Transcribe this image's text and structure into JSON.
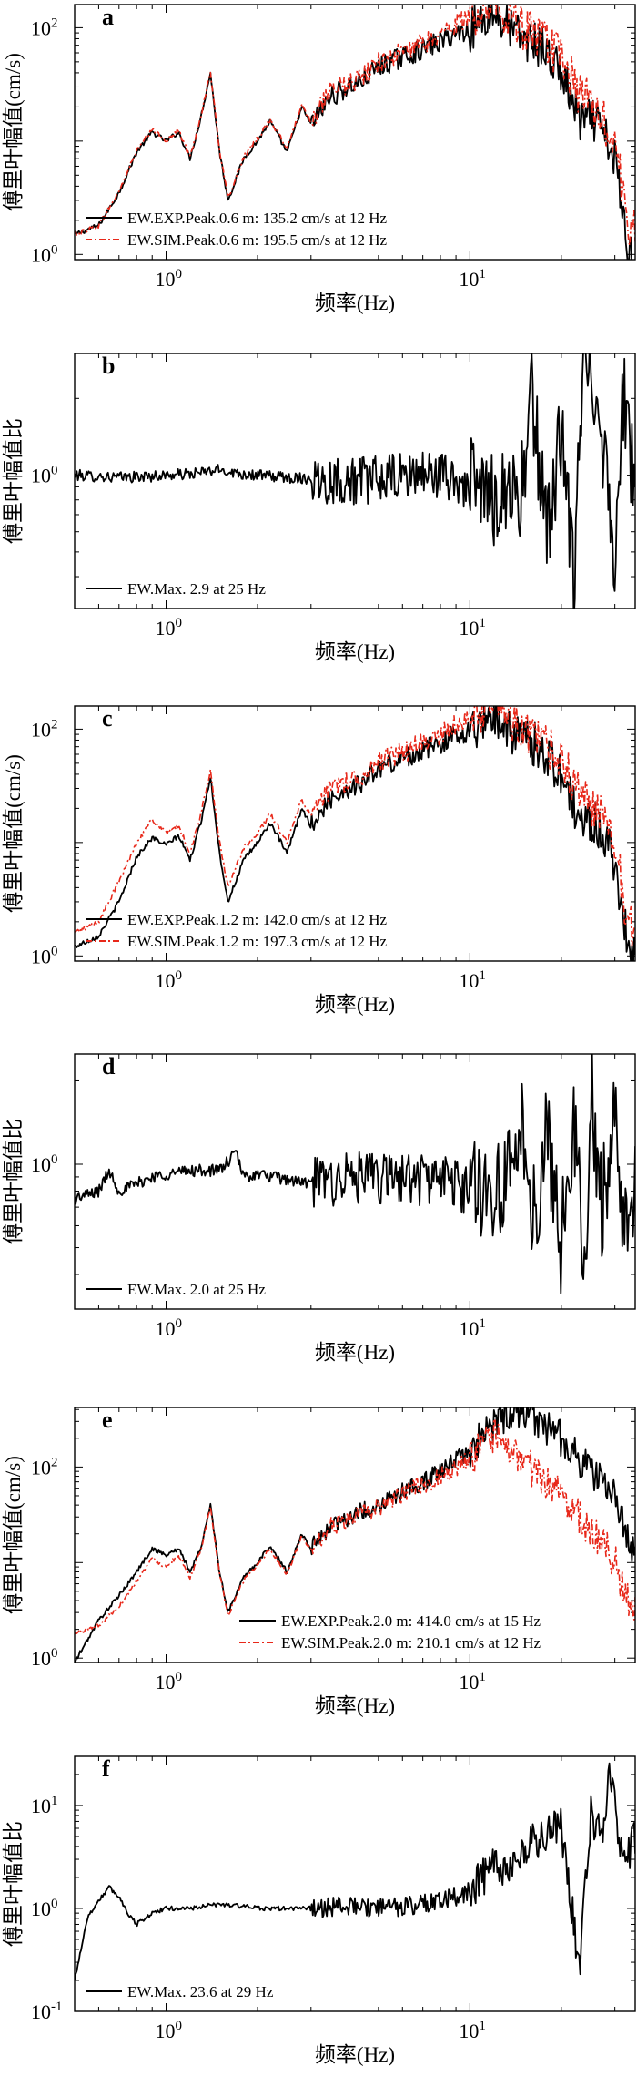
{
  "figure": {
    "x_label": "频率(Hz)"
  },
  "chart_data": [
    {
      "type": "line",
      "panel": "a",
      "xscale": "log",
      "yscale": "log",
      "xlim": [
        0.5,
        35
      ],
      "ylim": [
        0.9,
        160
      ],
      "xlabel": "频率(Hz)",
      "ylabel": "傅里叶幅值(cm/s)",
      "x_ticks": [
        {
          "value": 1,
          "base": "10",
          "exp": "0"
        },
        {
          "value": 10,
          "base": "10",
          "exp": "1"
        }
      ],
      "y_ticks": [
        {
          "value": 1,
          "base": "10",
          "exp": "0"
        },
        {
          "value": 100,
          "base": "10",
          "exp": "2"
        }
      ],
      "legend_position": "bottom-left",
      "series": [
        {
          "name": "EW.EXP.Peak.0.6 m: 135.2 cm/s  at 12 Hz",
          "color": "#000000",
          "dash": "solid",
          "x": [
            0.5,
            0.6,
            0.7,
            0.8,
            0.9,
            1.0,
            1.1,
            1.2,
            1.3,
            1.4,
            1.5,
            1.6,
            1.8,
            2.0,
            2.2,
            2.5,
            2.8,
            3.0,
            3.5,
            4.0,
            4.5,
            5.0,
            6.0,
            7.0,
            8.0,
            9.0,
            10.0,
            11.0,
            12.0,
            13.0,
            14.0,
            15.0,
            17.0,
            20.0,
            23.0,
            26.0,
            30.0,
            33.0,
            35.0
          ],
          "y": [
            1.5,
            1.8,
            3.5,
            8.0,
            12.0,
            10.0,
            12.0,
            7.0,
            16.0,
            40.0,
            8.0,
            3.0,
            7.0,
            10.0,
            15.0,
            8.0,
            20.0,
            14.0,
            25.0,
            30.0,
            35.0,
            45.0,
            55.0,
            65.0,
            75.0,
            90.0,
            95.0,
            120.0,
            135.2,
            110.0,
            90.0,
            80.0,
            70.0,
            40.0,
            15.0,
            15.0,
            7.0,
            1.2,
            0.9
          ]
        },
        {
          "name": "EW.SIM.Peak.0.6 m: 195.5 cm/s  at 12 Hz",
          "color": "#e8281a",
          "dash": "dashdot",
          "x": [
            0.5,
            0.6,
            0.7,
            0.8,
            0.9,
            1.0,
            1.1,
            1.2,
            1.3,
            1.4,
            1.5,
            1.6,
            1.8,
            2.0,
            2.2,
            2.5,
            2.8,
            3.0,
            3.5,
            4.0,
            4.5,
            5.0,
            6.0,
            7.0,
            8.0,
            9.0,
            10.0,
            11.0,
            12.0,
            13.0,
            14.0,
            15.0,
            17.0,
            20.0,
            23.0,
            26.0,
            30.0,
            33.0,
            35.0
          ],
          "y": [
            1.5,
            1.8,
            3.6,
            8.2,
            12.5,
            10.2,
            12.3,
            7.2,
            16.5,
            41.0,
            8.2,
            3.1,
            7.2,
            10.5,
            15.5,
            8.5,
            21.0,
            15.0,
            27.0,
            32.0,
            38.0,
            50.0,
            60.0,
            72.0,
            85.0,
            110.0,
            120.0,
            150.0,
            195.5,
            140.0,
            120.0,
            100.0,
            80.0,
            55.0,
            25.0,
            20.0,
            10.0,
            2.0,
            1.5
          ]
        }
      ]
    },
    {
      "type": "line",
      "panel": "b",
      "xscale": "log",
      "yscale": "log",
      "xlim": [
        0.5,
        35
      ],
      "ylim": [
        0.3,
        3.0
      ],
      "xlabel": "频率(Hz)",
      "ylabel": "傅里叶幅值比",
      "x_ticks": [
        {
          "value": 1,
          "base": "10",
          "exp": "0"
        },
        {
          "value": 10,
          "base": "10",
          "exp": "1"
        }
      ],
      "y_ticks": [
        {
          "value": 1,
          "base": "10",
          "exp": "0"
        }
      ],
      "legend_position": "bottom-left",
      "series": [
        {
          "name": "EW.Max. 2.9 at 25 Hz",
          "color": "#000000",
          "dash": "solid",
          "x": [
            0.5,
            0.7,
            0.9,
            1.0,
            1.2,
            1.5,
            1.8,
            2.0,
            2.5,
            3.0,
            4.0,
            5.0,
            6.0,
            7.0,
            8.0,
            9.0,
            10.0,
            11.0,
            12.0,
            13.0,
            14.0,
            15.0,
            16.0,
            18.0,
            20.0,
            22.0,
            23.0,
            25.0,
            27.0,
            30.0,
            32.0,
            35.0
          ],
          "y": [
            1.0,
            0.98,
            0.99,
            1.0,
            1.01,
            1.05,
            1.01,
            1.0,
            0.98,
            0.97,
            0.95,
            0.96,
            0.98,
            1.02,
            1.0,
            0.95,
            0.9,
            0.85,
            0.8,
            0.9,
            0.85,
            0.9,
            2.0,
            0.6,
            1.5,
            0.35,
            1.8,
            2.9,
            1.6,
            0.5,
            2.0,
            0.9
          ]
        }
      ]
    },
    {
      "type": "line",
      "panel": "c",
      "xscale": "log",
      "yscale": "log",
      "xlim": [
        0.5,
        35
      ],
      "ylim": [
        0.9,
        160
      ],
      "xlabel": "频率(Hz)",
      "ylabel": "傅里叶幅值(cm/s)",
      "x_ticks": [
        {
          "value": 1,
          "base": "10",
          "exp": "0"
        },
        {
          "value": 10,
          "base": "10",
          "exp": "1"
        }
      ],
      "y_ticks": [
        {
          "value": 1,
          "base": "10",
          "exp": "0"
        },
        {
          "value": 100,
          "base": "10",
          "exp": "2"
        }
      ],
      "legend_position": "bottom-left",
      "series": [
        {
          "name": "EW.EXP.Peak.1.2 m: 142.0 cm/s  at 12 Hz",
          "color": "#000000",
          "dash": "solid",
          "x": [
            0.5,
            0.6,
            0.7,
            0.8,
            0.9,
            1.0,
            1.1,
            1.2,
            1.3,
            1.4,
            1.5,
            1.6,
            1.8,
            2.0,
            2.2,
            2.5,
            2.8,
            3.0,
            3.5,
            4.0,
            4.5,
            5.0,
            6.0,
            7.0,
            8.0,
            9.0,
            10.0,
            11.0,
            12.0,
            13.0,
            14.0,
            15.0,
            17.0,
            20.0,
            23.0,
            26.0,
            30.0,
            33.0,
            35.0
          ],
          "y": [
            1.2,
            1.5,
            3.0,
            7.5,
            11.0,
            9.5,
            11.5,
            7.0,
            15.0,
            38.0,
            8.0,
            3.0,
            7.0,
            10.0,
            15.0,
            8.0,
            20.0,
            14.0,
            25.0,
            30.0,
            35.0,
            45.0,
            55.0,
            65.0,
            75.0,
            90.0,
            95.0,
            120.0,
            142.0,
            110.0,
            90.0,
            80.0,
            70.0,
            40.0,
            15.0,
            15.0,
            7.0,
            1.3,
            0.9
          ]
        },
        {
          "name": "EW.SIM.Peak.1.2 m: 197.3 cm/s  at 12 Hz",
          "color": "#e8281a",
          "dash": "dashdot",
          "x": [
            0.5,
            0.6,
            0.7,
            0.8,
            0.9,
            1.0,
            1.1,
            1.2,
            1.3,
            1.4,
            1.5,
            1.6,
            1.8,
            2.0,
            2.2,
            2.5,
            2.8,
            3.0,
            3.5,
            4.0,
            4.5,
            5.0,
            6.0,
            7.0,
            8.0,
            9.0,
            10.0,
            11.0,
            12.0,
            13.0,
            14.0,
            15.0,
            17.0,
            20.0,
            23.0,
            26.0,
            30.0,
            33.0,
            35.0
          ],
          "y": [
            1.6,
            2.0,
            4.5,
            10.0,
            16.0,
            12.0,
            14.0,
            8.0,
            18.0,
            42.0,
            10.0,
            4.0,
            9.0,
            12.0,
            18.0,
            10.0,
            24.0,
            17.0,
            30.0,
            36.0,
            40.0,
            52.0,
            62.0,
            75.0,
            88.0,
            110.0,
            120.0,
            150.0,
            197.3,
            140.0,
            120.0,
            100.0,
            80.0,
            55.0,
            25.0,
            20.0,
            10.0,
            2.0,
            1.5
          ]
        }
      ]
    },
    {
      "type": "line",
      "panel": "d",
      "xscale": "log",
      "yscale": "log",
      "xlim": [
        0.5,
        35
      ],
      "ylim": [
        0.3,
        2.5
      ],
      "xlabel": "频率(Hz)",
      "ylabel": "傅里叶幅值比",
      "x_ticks": [
        {
          "value": 1,
          "base": "10",
          "exp": "0"
        },
        {
          "value": 10,
          "base": "10",
          "exp": "1"
        }
      ],
      "y_ticks": [
        {
          "value": 1,
          "base": "10",
          "exp": "0"
        }
      ],
      "legend_position": "bottom-left",
      "series": [
        {
          "name": "EW.Max. 2.0 at 25 Hz",
          "color": "#000000",
          "dash": "solid",
          "x": [
            0.5,
            0.6,
            0.65,
            0.7,
            0.8,
            0.9,
            1.0,
            1.2,
            1.5,
            1.7,
            1.8,
            2.0,
            2.5,
            3.0,
            4.0,
            5.0,
            6.0,
            7.0,
            8.0,
            9.0,
            10.0,
            11.0,
            12.0,
            13.0,
            14.0,
            15.0,
            16.0,
            18.0,
            20.0,
            22.0,
            24.0,
            25.0,
            27.0,
            30.0,
            32.0,
            35.0
          ],
          "y": [
            0.75,
            0.8,
            0.95,
            0.8,
            0.85,
            0.9,
            0.92,
            0.95,
            0.95,
            1.1,
            0.9,
            0.92,
            0.88,
            0.85,
            0.9,
            0.88,
            0.9,
            0.88,
            0.9,
            0.85,
            0.8,
            0.85,
            0.8,
            0.9,
            0.8,
            1.5,
            0.6,
            1.3,
            0.5,
            1.6,
            0.3,
            2.0,
            0.7,
            1.4,
            0.6,
            0.9
          ]
        }
      ]
    },
    {
      "type": "line",
      "panel": "e",
      "xscale": "log",
      "yscale": "log",
      "xlim": [
        0.5,
        35
      ],
      "ylim": [
        0.9,
        420
      ],
      "xlabel": "频率(Hz)",
      "ylabel": "傅里叶幅值(cm/s)",
      "x_ticks": [
        {
          "value": 1,
          "base": "10",
          "exp": "0"
        },
        {
          "value": 10,
          "base": "10",
          "exp": "1"
        }
      ],
      "y_ticks": [
        {
          "value": 1,
          "base": "10",
          "exp": "0"
        },
        {
          "value": 100,
          "base": "10",
          "exp": "2"
        }
      ],
      "legend_position": "bottom-right",
      "series": [
        {
          "name": "EW.EXP.Peak.2.0 m: 414.0 cm/s  at 15 Hz",
          "color": "#000000",
          "dash": "solid",
          "x": [
            0.5,
            0.6,
            0.7,
            0.8,
            0.9,
            1.0,
            1.1,
            1.2,
            1.3,
            1.4,
            1.5,
            1.6,
            1.8,
            2.0,
            2.2,
            2.5,
            2.8,
            3.0,
            3.5,
            4.0,
            5.0,
            6.0,
            7.0,
            8.0,
            9.0,
            10.0,
            11.0,
            12.0,
            13.0,
            14.0,
            15.0,
            17.0,
            20.0,
            23.0,
            26.0,
            30.0,
            33.0,
            35.0
          ],
          "y": [
            0.9,
            2.5,
            4.5,
            8.0,
            14.0,
            12.0,
            14.0,
            8.0,
            14.0,
            40.0,
            8.0,
            3.0,
            7.0,
            10.0,
            15.0,
            8.0,
            20.0,
            14.0,
            25.0,
            30.0,
            40.0,
            55.0,
            70.0,
            90.0,
            120.0,
            150.0,
            200.0,
            300.0,
            350.0,
            380.0,
            414.0,
            300.0,
            200.0,
            120.0,
            80.0,
            50.0,
            20.0,
            10.0
          ]
        },
        {
          "name": "EW.SIM.Peak.2.0 m: 210.1 cm/s  at 12 Hz",
          "color": "#e8281a",
          "dash": "dashdot",
          "x": [
            0.5,
            0.6,
            0.7,
            0.8,
            0.9,
            1.0,
            1.1,
            1.2,
            1.3,
            1.4,
            1.5,
            1.6,
            1.8,
            2.0,
            2.2,
            2.5,
            2.8,
            3.0,
            3.5,
            4.0,
            5.0,
            6.0,
            7.0,
            8.0,
            9.0,
            10.0,
            11.0,
            12.0,
            13.0,
            14.0,
            15.0,
            17.0,
            20.0,
            23.0,
            26.0,
            30.0,
            33.0,
            35.0
          ],
          "y": [
            1.8,
            2.2,
            3.5,
            6.5,
            11.0,
            9.0,
            12.0,
            7.0,
            13.0,
            38.0,
            7.5,
            2.8,
            6.5,
            9.5,
            14.0,
            7.5,
            19.0,
            13.0,
            24.0,
            28.0,
            38.0,
            52.0,
            65.0,
            80.0,
            100.0,
            120.0,
            160.0,
            210.1,
            160.0,
            140.0,
            110.0,
            80.0,
            50.0,
            30.0,
            20.0,
            10.0,
            4.0,
            3.0
          ]
        }
      ]
    },
    {
      "type": "line",
      "panel": "f",
      "xscale": "log",
      "yscale": "log",
      "xlim": [
        0.5,
        35
      ],
      "ylim": [
        0.1,
        30
      ],
      "xlabel": "频率(Hz)",
      "ylabel": "傅里叶幅值比",
      "x_ticks": [
        {
          "value": 1,
          "base": "10",
          "exp": "0"
        },
        {
          "value": 10,
          "base": "10",
          "exp": "1"
        }
      ],
      "y_ticks": [
        {
          "value": 0.1,
          "base": "10",
          "exp": "-1"
        },
        {
          "value": 1,
          "base": "10",
          "exp": "0"
        },
        {
          "value": 10,
          "base": "10",
          "exp": "1"
        }
      ],
      "legend_position": "bottom-left",
      "series": [
        {
          "name": "EW.Max. 23.6 at 29 Hz",
          "color": "#000000",
          "dash": "solid",
          "x": [
            0.5,
            0.55,
            0.6,
            0.65,
            0.7,
            0.75,
            0.8,
            0.9,
            1.0,
            1.2,
            1.5,
            1.8,
            2.0,
            2.5,
            3.0,
            4.0,
            5.0,
            6.0,
            7.0,
            8.0,
            9.0,
            10.0,
            11.0,
            12.0,
            13.0,
            14.0,
            15.0,
            17.0,
            20.0,
            23.0,
            25.0,
            27.0,
            29.0,
            31.0,
            33.0,
            35.0
          ],
          "y": [
            0.2,
            0.8,
            1.2,
            1.6,
            1.3,
            0.9,
            0.7,
            0.9,
            1.0,
            1.0,
            1.1,
            1.05,
            1.0,
            1.0,
            1.0,
            1.05,
            1.0,
            1.05,
            1.1,
            1.2,
            1.3,
            1.5,
            2.0,
            2.5,
            2.0,
            3.0,
            3.5,
            5.0,
            6.0,
            0.25,
            8.0,
            5.0,
            23.6,
            4.0,
            3.0,
            5.0
          ]
        }
      ]
    }
  ]
}
